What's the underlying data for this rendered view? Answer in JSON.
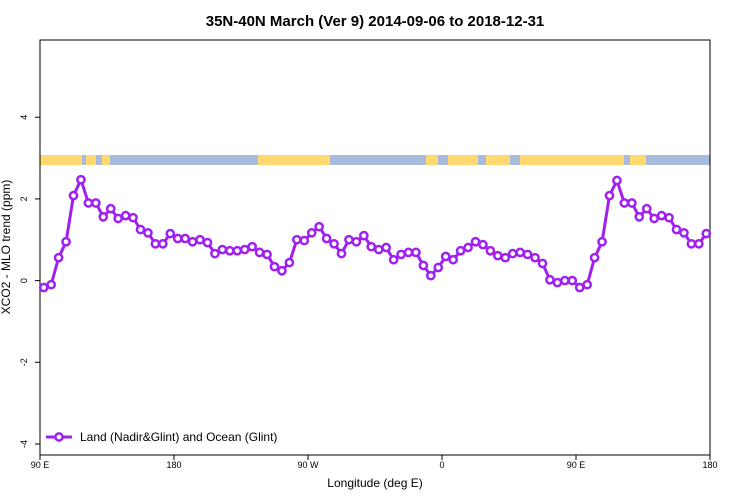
{
  "chart_data": {
    "type": "line",
    "title": "35N-40N March (Ver 9)   2014-09-06 to 2018-12-31",
    "x_label": "Longitude (deg E)",
    "y_label": "XCO2 - MLO trend (ppm)",
    "x": [
      92.5,
      97.5,
      102.5,
      107.5,
      112.5,
      117.5,
      122.5,
      127.5,
      132.5,
      137.5,
      142.5,
      147.5,
      152.5,
      157.5,
      162.5,
      167.5,
      172.5,
      177.5,
      182.5,
      187.5,
      192.5,
      197.5,
      202.5,
      207.5,
      212.5,
      217.5,
      222.5,
      227.5,
      232.5,
      237.5,
      242.5,
      247.5,
      252.5,
      257.5,
      262.5,
      267.5,
      272.5,
      277.5,
      282.5,
      287.5,
      292.5,
      297.5,
      302.5,
      307.5,
      312.5,
      317.5,
      322.5,
      327.5,
      332.5,
      337.5,
      342.5,
      347.5,
      352.5,
      357.5,
      362.5,
      367.5,
      372.5,
      377.5,
      382.5,
      387.5,
      392.5,
      397.5,
      402.5,
      407.5,
      412.5,
      417.5,
      422.5,
      427.5,
      432.5,
      437.5,
      442.5,
      447.5,
      452.5,
      457.5,
      462.5,
      467.5,
      472.5,
      477.5,
      482.5,
      487.5,
      492.5,
      497.5,
      502.5,
      507.5,
      512.5,
      517.5,
      522.5,
      527.5,
      532.5,
      537.5
    ],
    "series": [
      {
        "name": "Land (Nadir&Glint) and Ocean (Glint)",
        "color": "#a020f0",
        "values": [
          -0.17,
          -0.1,
          0.56,
          0.95,
          2.08,
          2.47,
          1.9,
          1.9,
          1.56,
          1.76,
          1.52,
          1.59,
          1.54,
          1.25,
          1.17,
          0.9,
          0.9,
          1.15,
          1.03,
          1.03,
          0.95,
          1.0,
          0.93,
          0.66,
          0.76,
          0.73,
          0.73,
          0.76,
          0.83,
          0.69,
          0.64,
          0.34,
          0.24,
          0.44,
          1.0,
          0.98,
          1.17,
          1.32,
          1.03,
          0.9,
          0.66,
          1.0,
          0.95,
          1.1,
          0.83,
          0.76,
          0.81,
          0.51,
          0.64,
          0.69,
          0.69,
          0.37,
          0.12,
          0.32,
          0.59,
          0.51,
          0.73,
          0.81,
          0.95,
          0.88,
          0.73,
          0.61,
          0.56,
          0.66,
          0.69,
          0.64,
          0.56,
          0.42,
          0.02,
          -0.05,
          0.0,
          0.0,
          -0.17,
          -0.1,
          0.56,
          0.95,
          2.08,
          2.45,
          1.9,
          1.9,
          1.56,
          1.76,
          1.52,
          1.59,
          1.54,
          1.25,
          1.17,
          0.9,
          0.9,
          1.15
        ]
      }
    ],
    "xlim": [
      90,
      540
    ],
    "xticks": [
      {
        "value": 90,
        "label": "90 E"
      },
      180,
      {
        "value": 270,
        "label": "90 W"
      },
      {
        "value": 360,
        "label": "0"
      },
      {
        "value": 450,
        "label": "90 E"
      },
      {
        "value": 540,
        "label": "180"
      }
    ],
    "ylim": [
      -4.27,
      5.89
    ],
    "yticks": [
      -4,
      -2,
      0,
      2,
      4
    ],
    "legend": "bottom-left"
  }
}
